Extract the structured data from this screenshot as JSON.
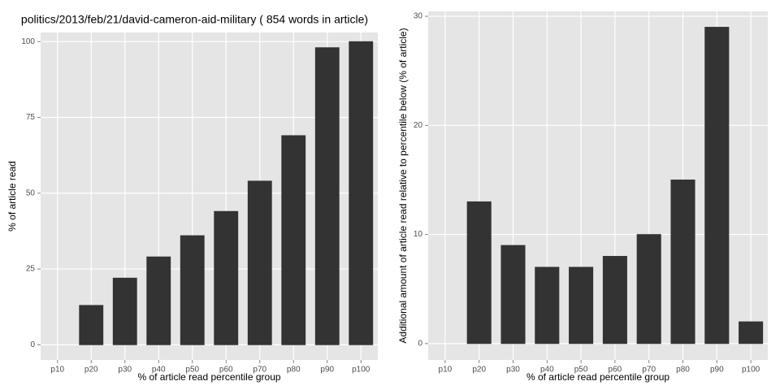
{
  "chart_data": [
    {
      "type": "bar",
      "title": "politics/2013/feb/21/david-cameron-aid-military ( 854 words in article)",
      "x_label": "% of article read percentile group",
      "y_label": "% of article read",
      "categories": [
        "p10",
        "p20",
        "p30",
        "p40",
        "p50",
        "p60",
        "p70",
        "p80",
        "p90",
        "p100"
      ],
      "values": [
        0,
        13,
        22,
        29,
        36,
        44,
        54,
        69,
        98,
        100
      ],
      "color": "#333333",
      "ylim": [
        -5,
        103
      ],
      "yticks": [
        0,
        25,
        50,
        75,
        100
      ],
      "grid": true
    },
    {
      "type": "bar",
      "x_label": "% of article read percentile group",
      "y_label": "Additional amount of article read relative to percentile below (% of article)",
      "categories": [
        "p10",
        "p20",
        "p30",
        "p40",
        "p50",
        "p60",
        "p70",
        "p80",
        "p90",
        "p100"
      ],
      "values": [
        0,
        13,
        9,
        7,
        7,
        8,
        10,
        15,
        29,
        2
      ],
      "color": "#333333",
      "ylim": [
        -1.5,
        30.45
      ],
      "yticks": [
        0,
        10,
        20,
        30
      ],
      "grid": true
    }
  ]
}
